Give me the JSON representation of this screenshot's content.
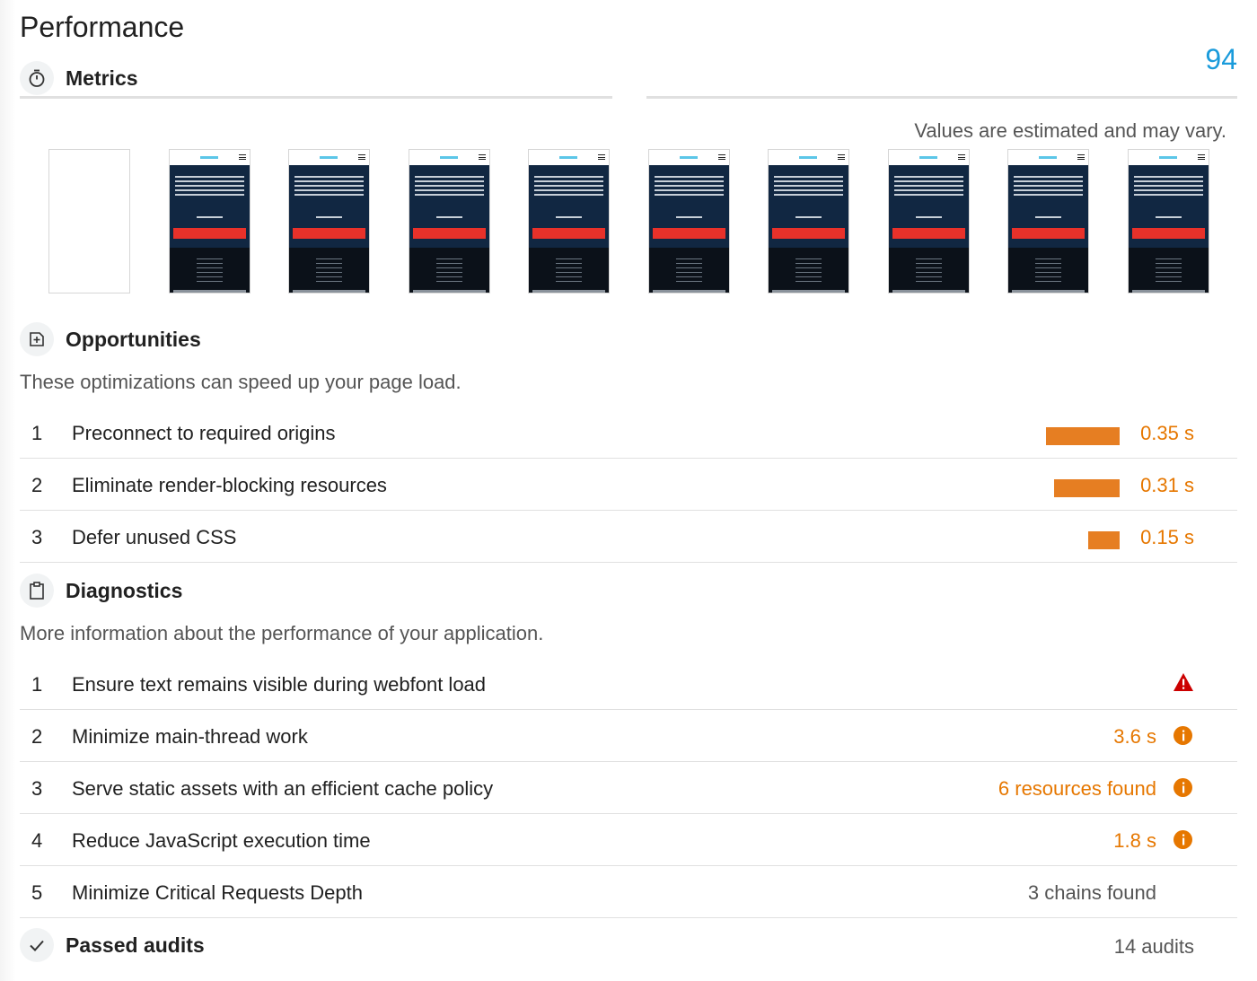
{
  "page": {
    "title": "Performance",
    "score": "94"
  },
  "metrics": {
    "label": "Metrics",
    "icon": "stopwatch-icon",
    "note": "Values are estimated and may vary."
  },
  "filmstrip": {
    "frames": [
      "blank",
      "loaded",
      "loaded",
      "loaded",
      "loaded",
      "loaded",
      "loaded",
      "loaded",
      "loaded",
      "loaded"
    ]
  },
  "opportunities": {
    "label": "Opportunities",
    "icon": "opportunity-icon",
    "subtitle": "These optimizations can speed up your page load.",
    "items": [
      {
        "num": "1",
        "text": "Preconnect to required origins",
        "value": "0.35 s",
        "savings": 0.35
      },
      {
        "num": "2",
        "text": "Eliminate render-blocking resources",
        "value": "0.31 s",
        "savings": 0.31
      },
      {
        "num": "3",
        "text": "Defer unused CSS",
        "value": "0.15 s",
        "savings": 0.15
      }
    ]
  },
  "diagnostics": {
    "label": "Diagnostics",
    "icon": "clipboard-icon",
    "subtitle": "More information about the performance of your application.",
    "items": [
      {
        "num": "1",
        "text": "Ensure text remains visible during webfont load",
        "value": "",
        "status": "fail",
        "icon": "warning-triangle-icon"
      },
      {
        "num": "2",
        "text": "Minimize main-thread work",
        "value": "3.6 s",
        "status": "average",
        "icon": "info-icon"
      },
      {
        "num": "3",
        "text": "Serve static assets with an efficient cache policy",
        "value": "6 resources found",
        "status": "average",
        "icon": "info-icon"
      },
      {
        "num": "4",
        "text": "Reduce JavaScript execution time",
        "value": "1.8 s",
        "status": "average",
        "icon": "info-icon"
      },
      {
        "num": "5",
        "text": "Minimize Critical Requests Depth",
        "value": "3 chains found",
        "status": "info",
        "icon": ""
      }
    ]
  },
  "passed": {
    "label": "Passed audits",
    "icon": "checkmark-icon",
    "count": "14 audits"
  },
  "colors": {
    "score": "#1a9bdb",
    "warning": "#e67700",
    "bar": "#e67e22",
    "fail": "#cc0000",
    "text": "#212121",
    "muted": "#555555"
  }
}
